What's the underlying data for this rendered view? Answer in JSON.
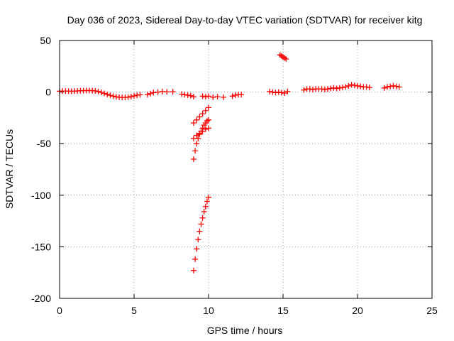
{
  "chart_data": {
    "type": "scatter",
    "title": "Day 036 of 2023, Sidereal Day-to-day VTEC variation (SDTVAR) for receiver kitg",
    "xlabel": "GPS time / hours",
    "ylabel": "SDTVAR / TECUs",
    "xlim": [
      0,
      25
    ],
    "ylim": [
      -200,
      50
    ],
    "xticks": [
      0,
      5,
      10,
      15,
      20,
      25
    ],
    "yticks": [
      -200,
      -150,
      -100,
      -50,
      0,
      50
    ],
    "xtick_labels": [
      "0",
      "5",
      "10",
      "15",
      "20",
      "25"
    ],
    "ytick_labels": [
      "-200",
      "-150",
      "-100",
      "-50",
      "0",
      "50"
    ],
    "grid": true,
    "marker": "+",
    "marker_color": "#ff0000",
    "series": [
      {
        "name": "SDTVAR",
        "points": [
          [
            0.0,
            0.8
          ],
          [
            0.2,
            1.0
          ],
          [
            0.4,
            1.0
          ],
          [
            0.6,
            0.9
          ],
          [
            0.8,
            0.8
          ],
          [
            1.0,
            0.9
          ],
          [
            1.2,
            1.1
          ],
          [
            1.4,
            1.3
          ],
          [
            1.6,
            1.4
          ],
          [
            1.8,
            1.5
          ],
          [
            2.0,
            1.5
          ],
          [
            2.2,
            1.4
          ],
          [
            2.4,
            1.1
          ],
          [
            2.6,
            0.5
          ],
          [
            2.8,
            -0.3
          ],
          [
            3.0,
            -1.3
          ],
          [
            3.2,
            -2.3
          ],
          [
            3.4,
            -3.2
          ],
          [
            3.6,
            -4.0
          ],
          [
            3.8,
            -4.6
          ],
          [
            4.0,
            -5.0
          ],
          [
            4.2,
            -5.2
          ],
          [
            4.4,
            -5.2
          ],
          [
            4.6,
            -4.9
          ],
          [
            4.8,
            -4.4
          ],
          [
            5.0,
            -3.7
          ],
          [
            5.2,
            -3.0
          ],
          [
            5.4,
            -2.6
          ],
          [
            5.9,
            -2.5
          ],
          [
            6.1,
            -1.5
          ],
          [
            6.3,
            -0.5
          ],
          [
            6.6,
            0.0
          ],
          [
            6.9,
            0.5
          ],
          [
            7.2,
            0.2
          ],
          [
            7.6,
            0.3
          ],
          [
            8.2,
            -2.0
          ],
          [
            8.4,
            -2.5
          ],
          [
            8.6,
            -3.0
          ],
          [
            8.8,
            -3.5
          ],
          [
            9.0,
            -4.5
          ],
          [
            9.6,
            -4.0
          ],
          [
            9.8,
            -4.5
          ],
          [
            10.0,
            -4.0
          ],
          [
            10.3,
            -5.0
          ],
          [
            10.6,
            -4.5
          ],
          [
            11.0,
            -5.0
          ],
          [
            11.6,
            -4.0
          ],
          [
            11.8,
            -3.0
          ],
          [
            12.0,
            -2.5
          ],
          [
            12.2,
            -2.5
          ],
          [
            14.1,
            0.5
          ],
          [
            14.3,
            0.0
          ],
          [
            14.5,
            -0.5
          ],
          [
            14.7,
            0.0
          ],
          [
            14.9,
            -0.5
          ],
          [
            15.1,
            -1.0
          ],
          [
            15.3,
            0.5
          ],
          [
            16.4,
            2.0
          ],
          [
            16.6,
            3.0
          ],
          [
            16.8,
            3.0
          ],
          [
            17.0,
            2.5
          ],
          [
            17.2,
            3.0
          ],
          [
            17.4,
            3.0
          ],
          [
            17.6,
            3.0
          ],
          [
            17.8,
            2.5
          ],
          [
            18.0,
            3.0
          ],
          [
            18.2,
            3.5
          ],
          [
            18.4,
            4.0
          ],
          [
            18.6,
            3.5
          ],
          [
            18.8,
            4.0
          ],
          [
            19.0,
            4.5
          ],
          [
            19.2,
            5.0
          ],
          [
            19.4,
            6.0
          ],
          [
            19.6,
            7.0
          ],
          [
            19.8,
            6.5
          ],
          [
            20.0,
            6.0
          ],
          [
            20.2,
            5.5
          ],
          [
            20.4,
            5.0
          ],
          [
            20.6,
            5.0
          ],
          [
            20.8,
            4.5
          ],
          [
            21.8,
            4.0
          ],
          [
            22.0,
            5.0
          ],
          [
            22.2,
            5.5
          ],
          [
            22.4,
            6.0
          ],
          [
            22.6,
            5.5
          ],
          [
            22.8,
            5.0
          ],
          [
            9.0,
            -30
          ],
          [
            9.2,
            -27
          ],
          [
            9.4,
            -24
          ],
          [
            9.6,
            -21
          ],
          [
            9.8,
            -18
          ],
          [
            10.0,
            -15
          ],
          [
            9.0,
            -65
          ],
          [
            9.1,
            -57
          ],
          [
            9.2,
            -50
          ],
          [
            9.3,
            -45
          ],
          [
            9.4,
            -41
          ],
          [
            9.5,
            -38
          ],
          [
            9.6,
            -35
          ],
          [
            9.7,
            -32
          ],
          [
            9.8,
            -30
          ],
          [
            9.9,
            -28
          ],
          [
            10.0,
            -27
          ],
          [
            9.0,
            -45
          ],
          [
            9.2,
            -42
          ],
          [
            9.4,
            -40
          ],
          [
            9.6,
            -38
          ],
          [
            9.8,
            -36
          ],
          [
            10.0,
            -35
          ],
          [
            9.0,
            -173
          ],
          [
            9.1,
            -162
          ],
          [
            9.2,
            -152
          ],
          [
            9.3,
            -143
          ],
          [
            9.4,
            -135
          ],
          [
            9.5,
            -128
          ],
          [
            9.6,
            -122
          ],
          [
            9.7,
            -116
          ],
          [
            9.8,
            -111
          ],
          [
            9.9,
            -106
          ],
          [
            10.0,
            -102
          ],
          [
            14.8,
            36
          ],
          [
            14.9,
            35
          ],
          [
            15.0,
            34
          ],
          [
            15.1,
            33
          ],
          [
            15.2,
            32
          ]
        ]
      }
    ]
  }
}
